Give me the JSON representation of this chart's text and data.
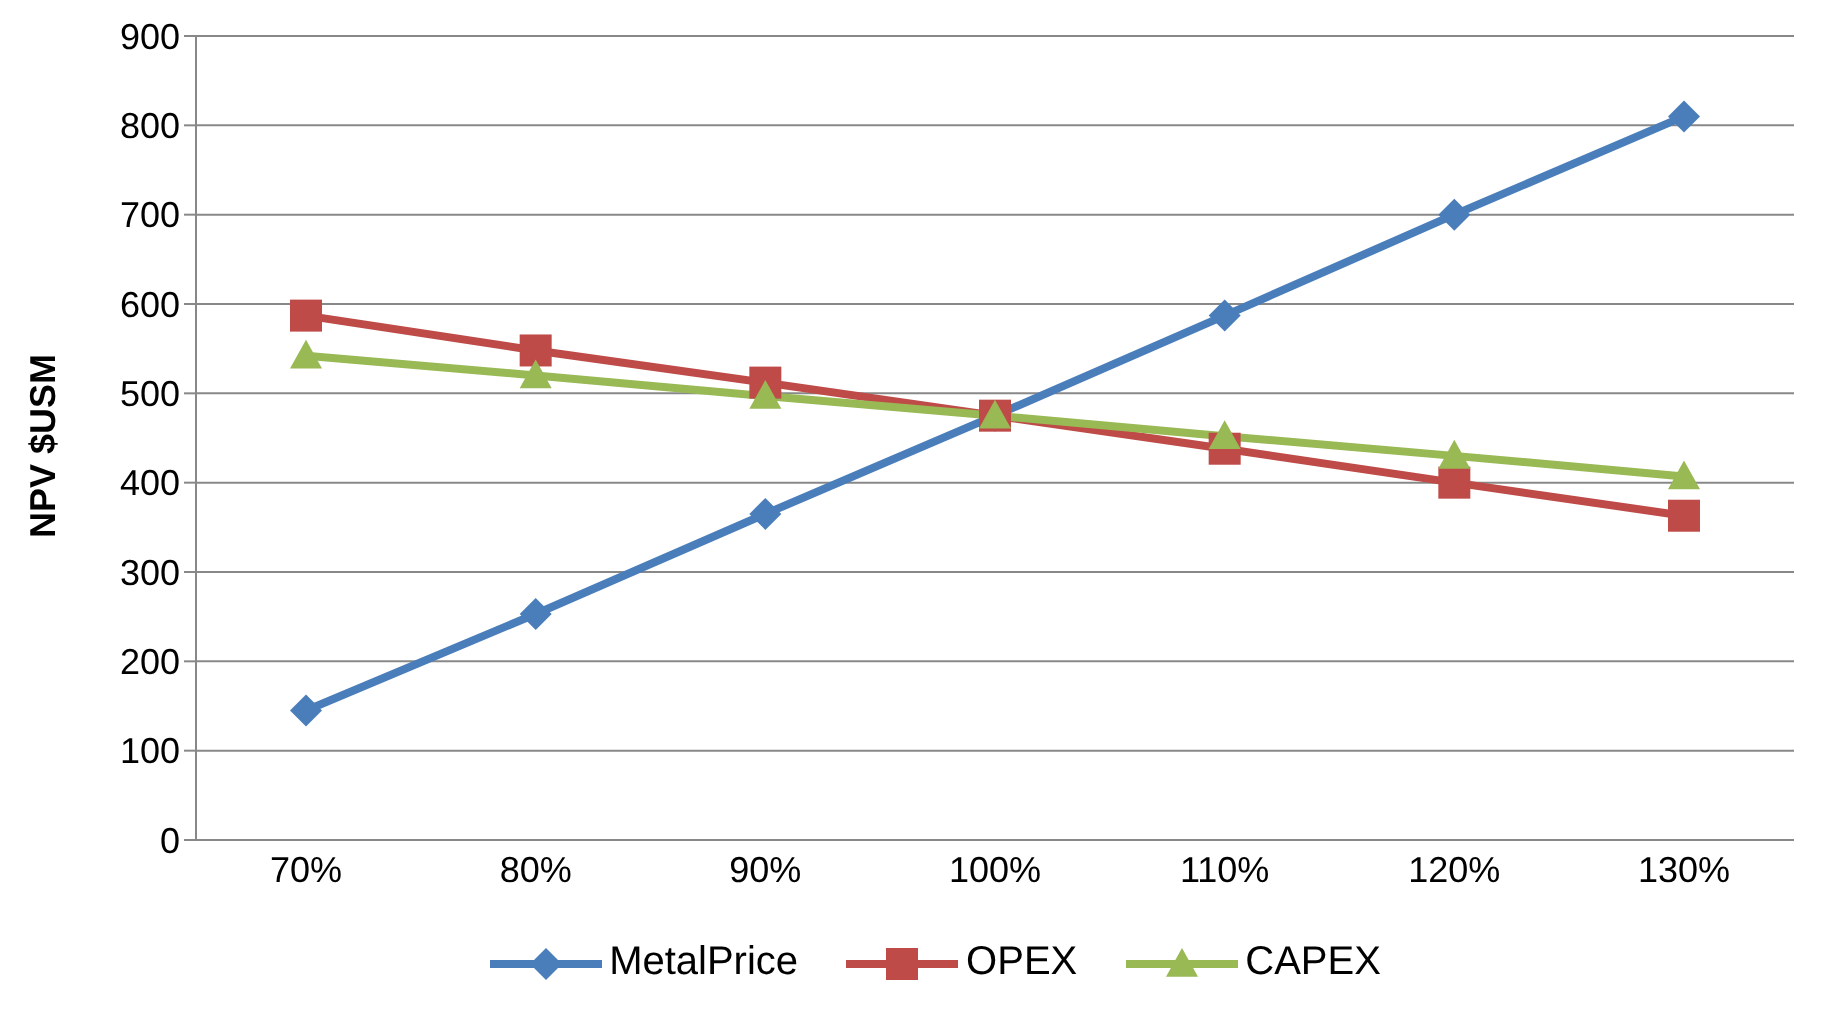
{
  "chart_data": {
    "type": "line",
    "ylabel": "NPV $USM",
    "categories": [
      "70%",
      "80%",
      "90%",
      "100%",
      "110%",
      "120%",
      "130%"
    ],
    "series": [
      {
        "name": "MetalPrice",
        "color": "#4a7ebb",
        "values": [
          145,
          253,
          365,
          475,
          587,
          700,
          810
        ],
        "marker": "diamond"
      },
      {
        "name": "OPEX",
        "color": "#be4b48",
        "values": [
          587,
          548,
          512,
          475,
          438,
          400,
          363
        ],
        "marker": "square"
      },
      {
        "name": "CAPEX",
        "color": "#98b954",
        "values": [
          542,
          520,
          497,
          475,
          452,
          430,
          407
        ],
        "marker": "triangle"
      }
    ],
    "ylim": [
      0,
      900
    ],
    "yticks": [
      0,
      100,
      200,
      300,
      400,
      500,
      600,
      700,
      800,
      900
    ],
    "grid": "y",
    "legend": "bottom"
  }
}
